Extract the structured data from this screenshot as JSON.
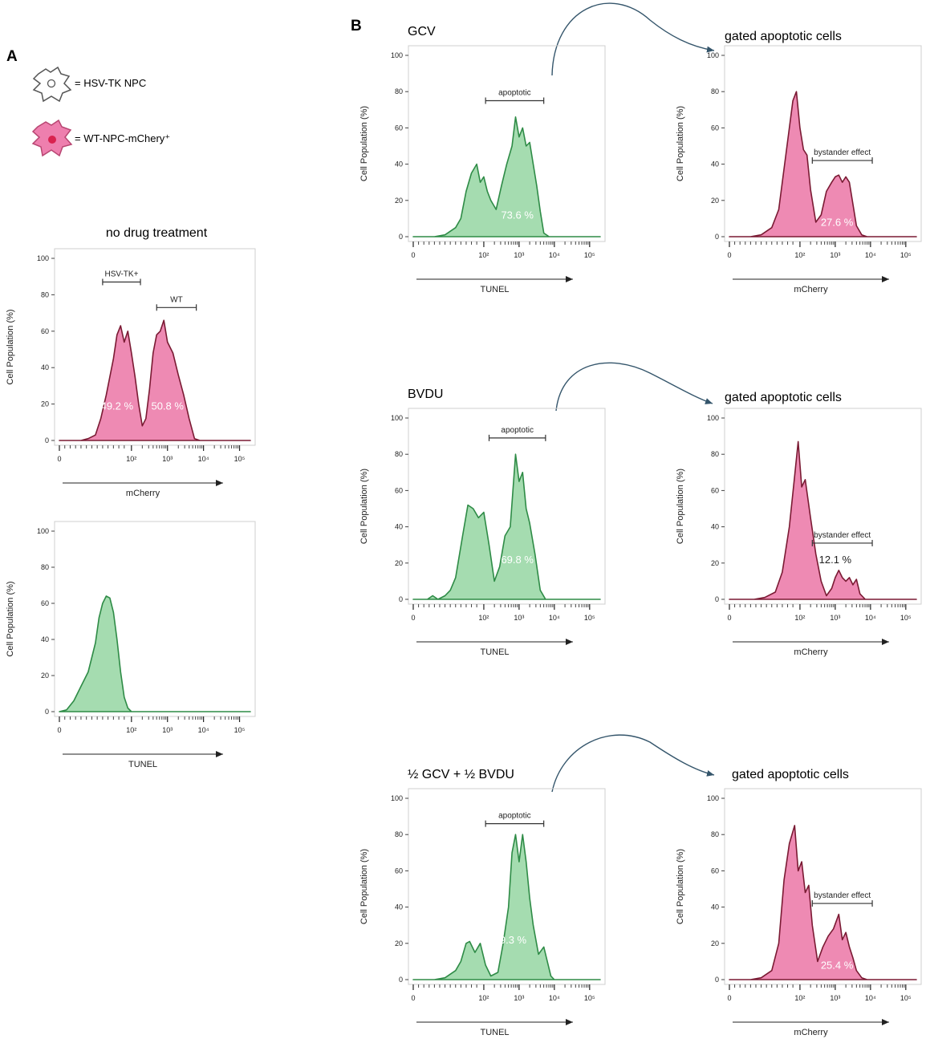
{
  "figure": {
    "panel_a_label": "A",
    "panel_b_label": "B",
    "legend": [
      {
        "icon": "hsv-tk-npc-cell-icon",
        "text": "= HSV-TK NPC",
        "fill": "#ffffff",
        "stroke": "#555555"
      },
      {
        "icon": "wt-npc-mcherry-cell-icon",
        "text": "= WT-NPC-mChery⁺",
        "fill": "#ee7fae",
        "stroke": "#b84672",
        "nucleus": "#d9224f"
      }
    ],
    "colors": {
      "pink_fill": "#ee8ab3",
      "pink_line": "#7a1a33",
      "green_fill": "#a5dcb0",
      "green_line": "#2e8b46",
      "arrow": "#34556b"
    }
  },
  "chart_data": [
    {
      "id": "A1",
      "type": "area",
      "title": "no drug treatment",
      "color": "pink",
      "xlabel": "mCherry",
      "ylabel": "Cell Population (%)",
      "ylim": [
        0,
        100
      ],
      "yticks": [
        "0",
        "20",
        "40",
        "60",
        "80",
        "100"
      ],
      "xticks": [
        "0",
        "10²",
        "10³",
        "10⁴",
        "10⁵"
      ],
      "x": [
        0,
        0.6,
        0.8,
        1.0,
        1.15,
        1.3,
        1.5,
        1.6,
        1.7,
        1.8,
        1.9,
        2.0,
        2.1,
        2.2,
        2.3,
        2.4,
        2.5,
        2.6,
        2.7,
        2.8,
        2.9,
        3.0,
        3.15,
        3.3,
        3.45,
        3.6,
        3.75,
        3.9,
        4.0,
        4.1,
        4.2,
        4.3,
        4.4,
        4.5,
        4.6,
        4.7,
        4.85,
        5.0,
        5.15,
        5.3
      ],
      "y": [
        0,
        0,
        1,
        3,
        12,
        25,
        45,
        58,
        63,
        54,
        60,
        48,
        35,
        20,
        8,
        12,
        28,
        48,
        58,
        60,
        66,
        54,
        48,
        36,
        25,
        12,
        1,
        0,
        0,
        0,
        0,
        0,
        0,
        0,
        0,
        0,
        0,
        0,
        0,
        0
      ],
      "gates": [
        {
          "label": "HSV-TK+",
          "from": 1.2,
          "to": 2.25,
          "y": 87
        },
        {
          "label": "WT",
          "from": 2.7,
          "to": 3.8,
          "y": 73
        }
      ],
      "annotations": [
        {
          "text": "49.2 %",
          "x": 1.6,
          "y": 17,
          "style": "light"
        },
        {
          "text": "50.8 %",
          "x": 3.0,
          "y": 17,
          "style": "light"
        }
      ]
    },
    {
      "id": "A2",
      "type": "area",
      "title": "",
      "color": "green",
      "xlabel": "TUNEL",
      "ylabel": "Cell Population (%)",
      "ylim": [
        0,
        100
      ],
      "yticks": [
        "0",
        "20",
        "40",
        "60",
        "80",
        "100"
      ],
      "xticks": [
        "0",
        "10²",
        "10³",
        "10⁴",
        "10⁵"
      ],
      "x": [
        0,
        0.2,
        0.4,
        0.6,
        0.8,
        1.0,
        1.1,
        1.2,
        1.3,
        1.4,
        1.5,
        1.6,
        1.7,
        1.8,
        1.9,
        2.0,
        2.2,
        2.4,
        2.6,
        2.8,
        3.0,
        3.5,
        4.0,
        4.5,
        5.0,
        5.3
      ],
      "y": [
        0,
        1,
        6,
        14,
        22,
        38,
        52,
        60,
        64,
        63,
        55,
        40,
        22,
        8,
        2,
        0,
        0,
        0,
        0,
        0,
        0,
        0,
        0,
        0,
        0,
        0
      ],
      "gates": [],
      "annotations": []
    },
    {
      "id": "B1",
      "type": "area",
      "title": "GCV",
      "color": "green",
      "xlabel": "TUNEL",
      "ylabel": "Cell Population (%)",
      "ylim": [
        0,
        100
      ],
      "yticks": [
        "0",
        "20",
        "40",
        "60",
        "80",
        "100"
      ],
      "xticks": [
        "0",
        "10²",
        "10³",
        "10⁴",
        "10⁵"
      ],
      "x": [
        0,
        0.6,
        0.9,
        1.2,
        1.35,
        1.5,
        1.65,
        1.8,
        1.9,
        2.0,
        2.1,
        2.2,
        2.35,
        2.5,
        2.65,
        2.8,
        2.9,
        3.0,
        3.1,
        3.2,
        3.3,
        3.4,
        3.5,
        3.6,
        3.7,
        3.85,
        4.0,
        4.15,
        4.3,
        4.6,
        5.0,
        5.3
      ],
      "y": [
        0,
        0,
        1,
        5,
        10,
        25,
        35,
        40,
        30,
        33,
        25,
        20,
        15,
        28,
        40,
        50,
        66,
        55,
        60,
        50,
        52,
        40,
        28,
        14,
        2,
        0,
        0,
        0,
        0,
        0,
        0,
        0
      ],
      "gates": [
        {
          "label": "apoptotic",
          "from": 2.05,
          "to": 3.7,
          "y": 75
        }
      ],
      "annotations": [
        {
          "text": "73.6 %",
          "x": 2.95,
          "y": 10,
          "style": "light"
        }
      ]
    },
    {
      "id": "B2",
      "type": "area",
      "title": "gated apoptotic cells",
      "color": "pink",
      "xlabel": "mCherry",
      "ylabel": "Cell Population (%)",
      "ylim": [
        0,
        100
      ],
      "yticks": [
        "0",
        "20",
        "40",
        "60",
        "80",
        "100"
      ],
      "xticks": [
        "0",
        "10²",
        "10³",
        "10⁴",
        "10⁵"
      ],
      "x": [
        0,
        0.6,
        0.9,
        1.2,
        1.4,
        1.6,
        1.8,
        1.9,
        2.0,
        2.1,
        2.2,
        2.3,
        2.45,
        2.6,
        2.75,
        2.9,
        3.0,
        3.1,
        3.2,
        3.3,
        3.4,
        3.5,
        3.6,
        3.75,
        3.9,
        4.05,
        4.2,
        4.4,
        4.7,
        5.0,
        5.3
      ],
      "y": [
        0,
        0,
        1,
        5,
        15,
        45,
        75,
        80,
        60,
        48,
        45,
        26,
        8,
        12,
        25,
        30,
        33,
        34,
        30,
        33,
        30,
        18,
        6,
        1,
        0,
        0,
        0,
        0,
        0,
        0,
        0
      ],
      "gates": [
        {
          "label": "bystander effect",
          "from": 2.35,
          "to": 4.05,
          "y": 42
        }
      ],
      "annotations": [
        {
          "text": "27.6 %",
          "x": 3.05,
          "y": 6,
          "style": "light"
        }
      ]
    },
    {
      "id": "B3",
      "type": "area",
      "title": "BVDU",
      "color": "green",
      "xlabel": "TUNEL",
      "ylabel": "Cell Population (%)",
      "ylim": [
        0,
        100
      ],
      "yticks": [
        "0",
        "20",
        "40",
        "60",
        "80",
        "100"
      ],
      "xticks": [
        "0",
        "10²",
        "10³",
        "10⁴",
        "10⁵"
      ],
      "x": [
        0,
        0.4,
        0.55,
        0.7,
        0.9,
        1.05,
        1.2,
        1.4,
        1.55,
        1.7,
        1.85,
        2.0,
        2.15,
        2.3,
        2.45,
        2.6,
        2.75,
        2.9,
        3.0,
        3.1,
        3.2,
        3.3,
        3.45,
        3.6,
        3.75,
        3.9,
        4.1,
        4.4,
        4.7,
        5.0,
        5.3
      ],
      "y": [
        0,
        0,
        2,
        0,
        2,
        5,
        12,
        35,
        52,
        50,
        45,
        48,
        30,
        10,
        18,
        35,
        40,
        80,
        65,
        70,
        50,
        42,
        25,
        5,
        0,
        0,
        0,
        0,
        0,
        0,
        0
      ],
      "gates": [
        {
          "label": "apoptotic",
          "from": 2.15,
          "to": 3.75,
          "y": 89
        }
      ],
      "annotations": [
        {
          "text": "69.8 %",
          "x": 2.95,
          "y": 20,
          "style": "light"
        }
      ]
    },
    {
      "id": "B4",
      "type": "area",
      "title": "gated apoptotic cells",
      "color": "pink",
      "xlabel": "mCherry",
      "ylabel": "Cell Population (%)",
      "ylim": [
        0,
        100
      ],
      "yticks": [
        "0",
        "20",
        "40",
        "60",
        "80",
        "100"
      ],
      "xticks": [
        "0",
        "10²",
        "10³",
        "10⁴",
        "10⁵"
      ],
      "x": [
        0,
        0.7,
        1.0,
        1.3,
        1.5,
        1.7,
        1.85,
        1.95,
        2.05,
        2.15,
        2.3,
        2.45,
        2.6,
        2.75,
        2.9,
        3.0,
        3.1,
        3.2,
        3.3,
        3.4,
        3.5,
        3.6,
        3.7,
        3.85,
        4.0,
        4.3,
        4.7,
        5.0,
        5.3
      ],
      "y": [
        0,
        0,
        1,
        4,
        15,
        40,
        68,
        87,
        62,
        66,
        45,
        25,
        10,
        2,
        6,
        12,
        16,
        12,
        10,
        12,
        8,
        11,
        3,
        0,
        0,
        0,
        0,
        0,
        0
      ],
      "gates": [
        {
          "label": "bystander effect",
          "from": 2.35,
          "to": 4.05,
          "y": 31
        }
      ],
      "annotations": [
        {
          "text": "12.1 %",
          "x": 3.0,
          "y": 20,
          "style": "dark"
        }
      ]
    },
    {
      "id": "B5",
      "type": "area",
      "title": "½ GCV + ½ BVDU",
      "color": "green",
      "xlabel": "TUNEL",
      "ylabel": "Cell Population (%)",
      "ylim": [
        0,
        100
      ],
      "yticks": [
        "0",
        "20",
        "40",
        "60",
        "80",
        "100"
      ],
      "xticks": [
        "0",
        "10²",
        "10³",
        "10⁴",
        "10⁵"
      ],
      "x": [
        0,
        0.6,
        0.9,
        1.2,
        1.35,
        1.5,
        1.6,
        1.75,
        1.9,
        2.05,
        2.2,
        2.4,
        2.55,
        2.7,
        2.8,
        2.9,
        3.0,
        3.1,
        3.2,
        3.3,
        3.4,
        3.55,
        3.7,
        3.8,
        3.9,
        4.0,
        4.3,
        4.7,
        5.0,
        5.3
      ],
      "y": [
        0,
        0,
        1,
        5,
        10,
        20,
        21,
        15,
        20,
        8,
        2,
        4,
        20,
        40,
        70,
        80,
        65,
        80,
        65,
        45,
        30,
        14,
        18,
        10,
        2,
        0,
        0,
        0,
        0,
        0
      ],
      "gates": [
        {
          "label": "apoptotic",
          "from": 2.05,
          "to": 3.7,
          "y": 86
        }
      ],
      "annotations": [
        {
          "text": "89.3 %",
          "x": 2.75,
          "y": 20,
          "style": "light"
        }
      ]
    },
    {
      "id": "B6",
      "type": "area",
      "title": "gated apoptotic cells",
      "color": "pink",
      "xlabel": "mCherry",
      "ylabel": "Cell Population (%)",
      "ylim": [
        0,
        100
      ],
      "yticks": [
        "0",
        "20",
        "40",
        "60",
        "80",
        "100"
      ],
      "xticks": [
        "0",
        "10²",
        "10³",
        "10⁴",
        "10⁵"
      ],
      "x": [
        0,
        0.6,
        0.9,
        1.2,
        1.4,
        1.55,
        1.7,
        1.85,
        1.95,
        2.05,
        2.15,
        2.25,
        2.35,
        2.5,
        2.65,
        2.8,
        2.95,
        3.1,
        3.2,
        3.3,
        3.4,
        3.5,
        3.6,
        3.75,
        3.9,
        4.0,
        4.3,
        4.7,
        5.0,
        5.3
      ],
      "y": [
        0,
        0,
        1,
        5,
        20,
        55,
        75,
        85,
        60,
        65,
        48,
        52,
        30,
        10,
        18,
        24,
        28,
        36,
        22,
        26,
        18,
        12,
        5,
        1,
        0,
        0,
        0,
        0,
        0,
        0
      ],
      "gates": [
        {
          "label": "bystander effect",
          "from": 2.35,
          "to": 4.05,
          "y": 42
        }
      ],
      "annotations": [
        {
          "text": "25.4 %",
          "x": 3.05,
          "y": 6,
          "style": "light"
        }
      ]
    }
  ]
}
